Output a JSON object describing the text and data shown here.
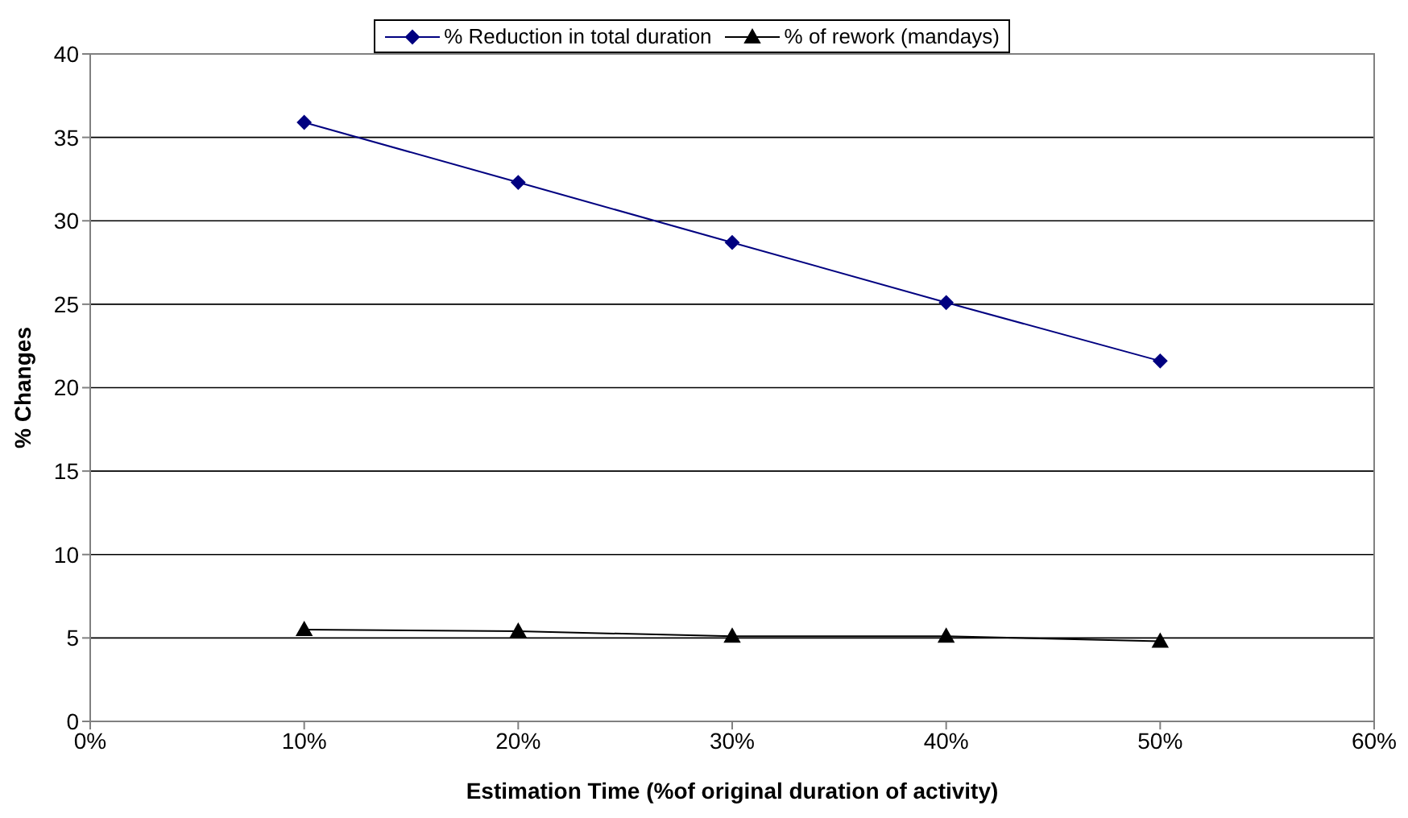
{
  "chart_data": {
    "type": "line",
    "xlabel": "Estimation Time (%of original duration of activity)",
    "ylabel": "% Changes",
    "x": [
      10,
      20,
      30,
      40,
      50
    ],
    "series": [
      {
        "name": "% Reduction in total duration",
        "color": "#000080",
        "marker": "diamond",
        "values": [
          35.9,
          32.3,
          28.7,
          25.1,
          21.6
        ]
      },
      {
        "name": "% of rework (mandays)",
        "color": "#000000",
        "marker": "triangle",
        "values": [
          5.5,
          5.4,
          5.1,
          5.1,
          4.8
        ]
      }
    ],
    "xlim": [
      0,
      60
    ],
    "xticks": [
      {
        "value": 0,
        "label": "0%"
      },
      {
        "value": 10,
        "label": "10%"
      },
      {
        "value": 20,
        "label": "20%"
      },
      {
        "value": 30,
        "label": "30%"
      },
      {
        "value": 40,
        "label": "40%"
      },
      {
        "value": 50,
        "label": "50%"
      },
      {
        "value": 60,
        "label": "60%"
      }
    ],
    "ylim": [
      0,
      40
    ],
    "yticks": [
      0,
      5,
      10,
      15,
      20,
      25,
      30,
      35,
      40
    ],
    "grid": "y",
    "legend": "top",
    "line_style": "solid"
  }
}
